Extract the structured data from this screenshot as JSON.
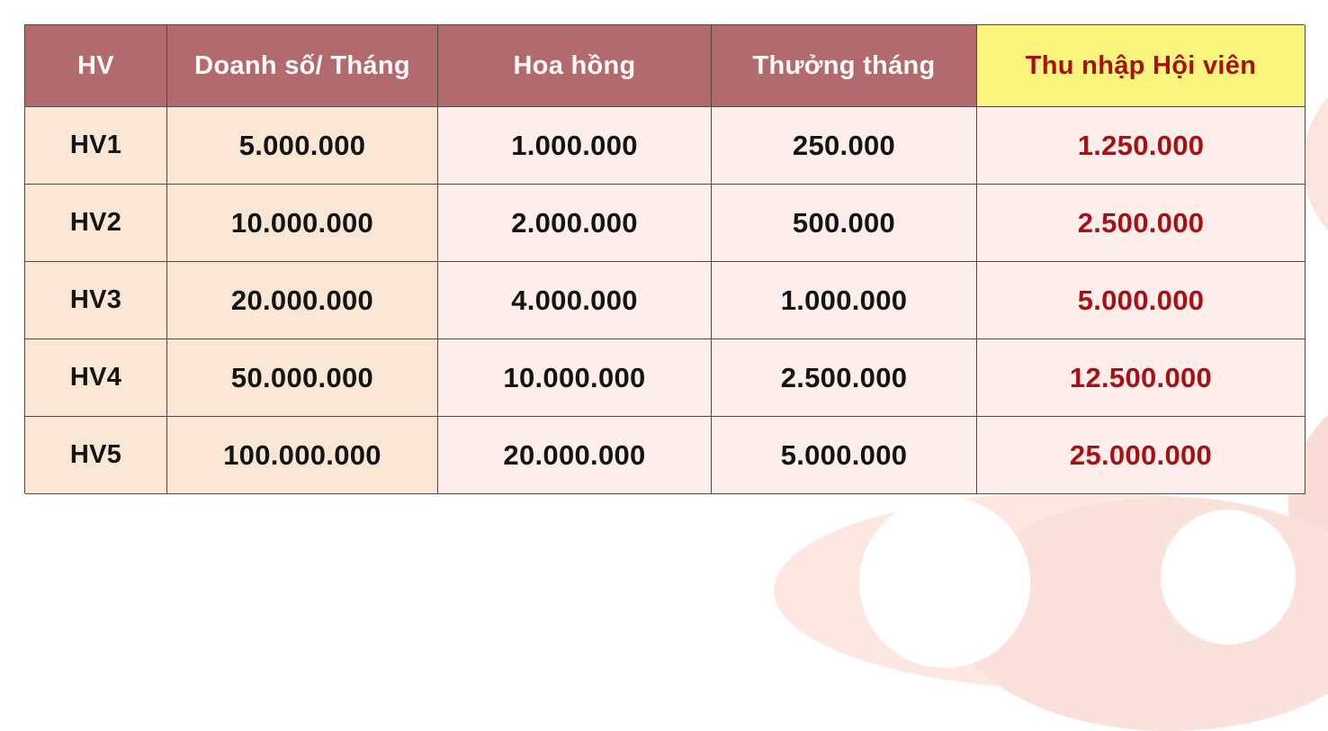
{
  "page": {
    "background_color": "#ffffff",
    "decor_color": "#fbe3de"
  },
  "table": {
    "header": {
      "hv": "HV",
      "doanh_so": "Doanh số/ Tháng",
      "hoa_hong": "Hoa hồng",
      "thuong_thang": "Thưởng tháng",
      "thu_nhap": "Thu nhập Hội viên"
    },
    "rows": [
      {
        "hv": "HV1",
        "doanh_so": "5.000.000",
        "hoa_hong": "1.000.000",
        "thuong_thang": "250.000",
        "thu_nhap": "1.250.000"
      },
      {
        "hv": "HV2",
        "doanh_so": "10.000.000",
        "hoa_hong": "2.000.000",
        "thuong_thang": "500.000",
        "thu_nhap": "2.500.000"
      },
      {
        "hv": "HV3",
        "doanh_so": "20.000.000",
        "hoa_hong": "4.000.000",
        "thuong_thang": "1.000.000",
        "thu_nhap": "5.000.000"
      },
      {
        "hv": "HV4",
        "doanh_so": "50.000.000",
        "hoa_hong": "10.000.000",
        "thuong_thang": "2.500.000",
        "thu_nhap": "12.500.000"
      },
      {
        "hv": "HV5",
        "doanh_so": "100.000.000",
        "hoa_hong": "20.000.000",
        "thuong_thang": "5.000.000",
        "thu_nhap": "25.000.000"
      }
    ],
    "colors": {
      "header_bg": "#b26a6f",
      "header_text": "#fdfaf9",
      "highlight_header_bg": "#faf57d",
      "highlight_text": "#a81014",
      "col_peach_bg": "#f9e6d5",
      "col_pink_bg": "#fdeeec",
      "border": "#554742",
      "body_text": "#141414"
    }
  },
  "chart_data": {
    "type": "table",
    "columns": [
      "HV",
      "Doanh số/ Tháng",
      "Hoa hồng",
      "Thưởng tháng",
      "Thu nhập Hội viên"
    ],
    "rows": [
      [
        "HV1",
        "5.000.000",
        "1.000.000",
        "250.000",
        "1.250.000"
      ],
      [
        "HV2",
        "10.000.000",
        "2.000.000",
        "500.000",
        "2.500.000"
      ],
      [
        "HV3",
        "20.000.000",
        "4.000.000",
        "1.000.000",
        "5.000.000"
      ],
      [
        "HV4",
        "50.000.000",
        "10.000.000",
        "2.500.000",
        "12.500.000"
      ],
      [
        "HV5",
        "100.000.000",
        "20.000.000",
        "5.000.000",
        "25.000.000"
      ]
    ],
    "notes": "Membership income table: monthly sales, commission, monthly bonus, member income (VND). Last column highlighted yellow header with dark-red values."
  }
}
